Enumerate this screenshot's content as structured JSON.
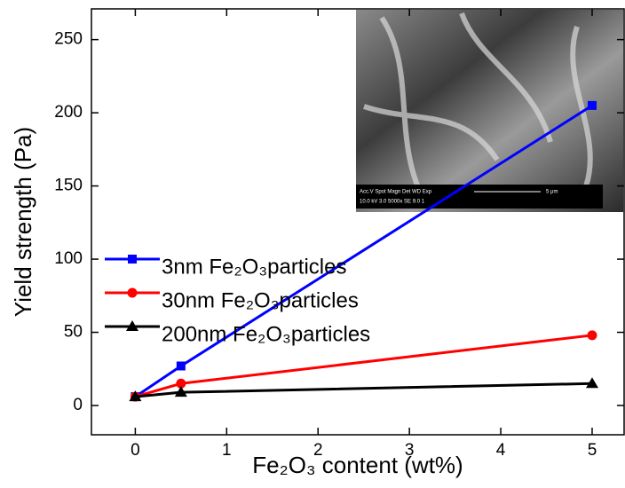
{
  "chart_data": {
    "type": "line",
    "xlabel": "Fe₂O₃ content (wt%)",
    "ylabel": "Yield strength (Pa)",
    "x": [
      0,
      0.5,
      5
    ],
    "series": [
      {
        "name": "3nm Fe₂O₃particles",
        "color": "#0000ff",
        "marker": "square",
        "values": [
          6,
          27,
          205
        ]
      },
      {
        "name": "30nm Fe₂O₃particles",
        "color": "#ff0000",
        "marker": "circle",
        "values": [
          6,
          15,
          48
        ]
      },
      {
        "name": "200nm Fe₂O₃particles",
        "color": "#000000",
        "marker": "triangle",
        "values": [
          6,
          9,
          15
        ]
      }
    ],
    "xlim": [
      -0.48,
      5.35
    ],
    "xticks": [
      0,
      1,
      2,
      3,
      4,
      5
    ],
    "ylim": [
      -20,
      271
    ],
    "yticks": [
      0,
      50,
      100,
      150,
      200,
      250
    ],
    "inset_text": [
      "Acc.V  Spot Magn    Det  WD  Exp",
      "10.0 kV 3.0  5000x   SE   9.0    1",
      "5 μm"
    ]
  }
}
